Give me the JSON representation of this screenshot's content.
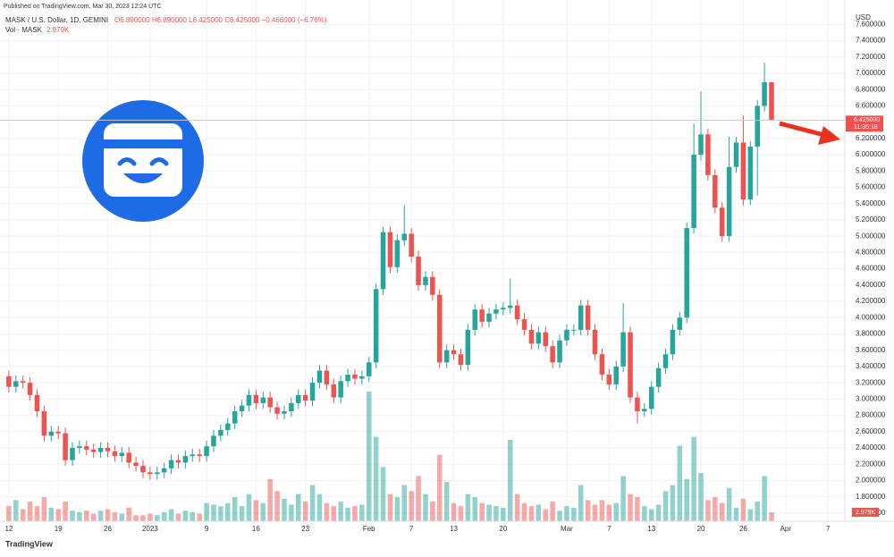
{
  "chart_data": {
    "type": "candlestick",
    "published": "Published on TradingView.com, Mar 30, 2023 12:24 UTC",
    "title": "MASK / U.S. Dollar, 1D, GEMINI",
    "ohlc_legend": "O6.890000 H6.890000 L6.425000 C6.425000 −0.466000 (−6.76%)",
    "volume_title": "Vol · MASK",
    "volume_label": "2.979K",
    "currency": "USD",
    "price_label": "6.425000",
    "countdown": "11:35:18",
    "brand": "TradingView",
    "up_color": "#26a69a",
    "down_color": "#ef5350",
    "grid": true,
    "x": [
      "2022-12-12",
      "2022-12-13",
      "2022-12-14",
      "2022-12-15",
      "2022-12-16",
      "2022-12-17",
      "2022-12-18",
      "2022-12-19",
      "2022-12-20",
      "2022-12-21",
      "2022-12-22",
      "2022-12-23",
      "2022-12-24",
      "2022-12-25",
      "2022-12-26",
      "2022-12-27",
      "2022-12-28",
      "2022-12-29",
      "2022-12-30",
      "2022-12-31",
      "2023-01-01",
      "2023-01-02",
      "2023-01-03",
      "2023-01-04",
      "2023-01-05",
      "2023-01-06",
      "2023-01-07",
      "2023-01-08",
      "2023-01-09",
      "2023-01-10",
      "2023-01-11",
      "2023-01-12",
      "2023-01-13",
      "2023-01-14",
      "2023-01-15",
      "2023-01-16",
      "2023-01-17",
      "2023-01-18",
      "2023-01-19",
      "2023-01-20",
      "2023-01-21",
      "2023-01-22",
      "2023-01-23",
      "2023-01-24",
      "2023-01-25",
      "2023-01-26",
      "2023-01-27",
      "2023-01-28",
      "2023-01-29",
      "2023-01-30",
      "2023-01-31",
      "2023-02-01",
      "2023-02-02",
      "2023-02-03",
      "2023-02-04",
      "2023-02-05",
      "2023-02-06",
      "2023-02-07",
      "2023-02-08",
      "2023-02-09",
      "2023-02-10",
      "2023-02-11",
      "2023-02-12",
      "2023-02-13",
      "2023-02-14",
      "2023-02-15",
      "2023-02-16",
      "2023-02-17",
      "2023-02-18",
      "2023-02-19",
      "2023-02-20",
      "2023-02-21",
      "2023-02-22",
      "2023-02-23",
      "2023-02-24",
      "2023-02-25",
      "2023-02-26",
      "2023-02-27",
      "2023-02-28",
      "2023-03-01",
      "2023-03-02",
      "2023-03-03",
      "2023-03-04",
      "2023-03-05",
      "2023-03-06",
      "2023-03-07",
      "2023-03-08",
      "2023-03-09",
      "2023-03-10",
      "2023-03-11",
      "2023-03-12",
      "2023-03-13",
      "2023-03-14",
      "2023-03-15",
      "2023-03-16",
      "2023-03-17",
      "2023-03-18",
      "2023-03-19",
      "2023-03-20",
      "2023-03-21",
      "2023-03-22",
      "2023-03-23",
      "2023-03-24",
      "2023-03-25",
      "2023-03-26",
      "2023-03-27",
      "2023-03-28",
      "2023-03-29",
      "2023-03-30"
    ],
    "open": [
      3.28,
      3.15,
      3.22,
      3.2,
      3.05,
      2.85,
      2.55,
      2.6,
      2.58,
      2.25,
      2.4,
      2.42,
      2.38,
      2.35,
      2.4,
      2.36,
      2.3,
      2.34,
      2.22,
      2.18,
      2.1,
      2.08,
      2.1,
      2.15,
      2.25,
      2.22,
      2.3,
      2.32,
      2.3,
      2.42,
      2.55,
      2.62,
      2.7,
      2.85,
      2.92,
      3.05,
      2.95,
      3.02,
      2.9,
      2.82,
      2.85,
      2.95,
      3.05,
      2.98,
      3.2,
      3.35,
      3.18,
      3.02,
      3.22,
      3.3,
      3.25,
      3.28,
      3.45,
      4.35,
      5.05,
      4.62,
      4.95,
      5.03,
      4.75,
      4.4,
      4.5,
      4.28,
      3.45,
      3.6,
      3.55,
      3.42,
      3.85,
      4.1,
      3.95,
      4.05,
      4.1,
      4.12,
      4.15,
      3.98,
      3.85,
      3.68,
      3.82,
      3.65,
      3.45,
      3.72,
      3.85,
      3.85,
      4.15,
      3.85,
      3.55,
      3.3,
      3.18,
      3.4,
      3.82,
      3.02,
      2.85,
      2.88,
      3.15,
      3.38,
      3.55,
      3.85,
      4.0,
      5.1,
      6.0,
      6.25,
      5.75,
      5.35,
      5.0,
      5.85,
      6.15,
      5.45,
      6.1,
      6.6,
      6.89
    ],
    "high": [
      3.35,
      3.29,
      3.29,
      3.27,
      3.12,
      2.92,
      2.67,
      2.67,
      2.65,
      2.47,
      2.49,
      2.49,
      2.45,
      2.47,
      2.47,
      2.43,
      2.41,
      2.41,
      2.29,
      2.25,
      2.17,
      2.17,
      2.22,
      2.32,
      2.32,
      2.37,
      2.39,
      2.39,
      2.49,
      2.62,
      2.69,
      2.77,
      2.92,
      2.99,
      3.12,
      3.12,
      3.09,
      3.09,
      2.97,
      2.92,
      3.02,
      3.12,
      3.12,
      3.27,
      3.42,
      3.42,
      3.25,
      3.29,
      3.37,
      3.37,
      3.35,
      3.52,
      4.42,
      5.12,
      5.12,
      5.02,
      5.38,
      5.1,
      4.82,
      4.57,
      4.57,
      4.35,
      3.67,
      3.67,
      3.62,
      3.92,
      4.17,
      4.17,
      4.12,
      4.17,
      4.19,
      4.48,
      4.22,
      4.05,
      3.92,
      3.89,
      3.89,
      3.72,
      3.79,
      3.92,
      3.92,
      4.22,
      4.22,
      3.92,
      3.62,
      3.37,
      3.47,
      4.18,
      3.89,
      3.09,
      2.95,
      3.22,
      3.45,
      3.62,
      3.92,
      4.07,
      5.17,
      6.38,
      6.78,
      6.32,
      5.82,
      5.42,
      6.22,
      6.22,
      6.48,
      6.17,
      6.67,
      7.13,
      6.89
    ],
    "low": [
      3.08,
      3.08,
      3.13,
      2.98,
      2.78,
      2.48,
      2.48,
      2.51,
      2.18,
      2.18,
      2.33,
      2.31,
      2.28,
      2.28,
      2.29,
      2.23,
      2.23,
      2.15,
      2.11,
      2.03,
      2.01,
      2.01,
      2.03,
      2.08,
      2.15,
      2.15,
      2.23,
      2.23,
      2.23,
      2.35,
      2.48,
      2.55,
      2.63,
      2.78,
      2.85,
      2.88,
      2.88,
      2.83,
      2.75,
      2.75,
      2.78,
      2.88,
      2.91,
      2.91,
      3.13,
      3.11,
      2.95,
      2.95,
      3.15,
      3.18,
      3.18,
      3.21,
      3.38,
      4.28,
      4.55,
      4.55,
      4.88,
      4.68,
      4.33,
      4.33,
      4.21,
      3.38,
      3.38,
      3.48,
      3.35,
      3.35,
      3.78,
      3.88,
      3.88,
      3.98,
      4.03,
      4.05,
      3.91,
      3.78,
      3.61,
      3.61,
      3.58,
      3.38,
      3.38,
      3.65,
      3.78,
      3.78,
      3.78,
      3.48,
      3.23,
      3.11,
      3.11,
      3.33,
      2.95,
      2.7,
      2.78,
      2.81,
      3.08,
      3.31,
      3.48,
      3.78,
      3.93,
      5.03,
      5.93,
      5.68,
      5.28,
      4.93,
      4.93,
      5.78,
      5.38,
      5.38,
      5.5,
      6.53,
      6.425
    ],
    "close": [
      3.15,
      3.22,
      3.2,
      3.05,
      2.85,
      2.55,
      2.6,
      2.58,
      2.25,
      2.4,
      2.42,
      2.38,
      2.35,
      2.4,
      2.36,
      2.3,
      2.34,
      2.22,
      2.18,
      2.1,
      2.08,
      2.1,
      2.15,
      2.25,
      2.22,
      2.3,
      2.32,
      2.3,
      2.42,
      2.55,
      2.62,
      2.7,
      2.85,
      2.92,
      3.05,
      2.95,
      3.02,
      2.9,
      2.82,
      2.85,
      2.95,
      3.05,
      2.98,
      3.2,
      3.35,
      3.18,
      3.02,
      3.22,
      3.3,
      3.25,
      3.28,
      3.45,
      4.35,
      5.05,
      4.62,
      4.95,
      5.03,
      4.75,
      4.4,
      4.5,
      4.28,
      3.45,
      3.6,
      3.55,
      3.42,
      3.85,
      4.1,
      3.95,
      4.05,
      4.1,
      4.12,
      4.15,
      3.98,
      3.85,
      3.68,
      3.82,
      3.65,
      3.45,
      3.72,
      3.85,
      3.85,
      4.15,
      3.85,
      3.55,
      3.3,
      3.18,
      3.4,
      3.82,
      3.02,
      2.85,
      2.88,
      3.15,
      3.38,
      3.55,
      3.85,
      4.0,
      5.1,
      6.0,
      6.25,
      5.75,
      5.35,
      5.0,
      5.85,
      6.15,
      5.45,
      6.1,
      6.6,
      6.89,
      6.425
    ],
    "volume": [
      5000,
      7000,
      4000,
      6500,
      5000,
      8000,
      4500,
      4000,
      6500,
      3500,
      3000,
      3500,
      2500,
      3500,
      4000,
      3000,
      2500,
      4500,
      2000,
      2000,
      2500,
      2000,
      3000,
      4000,
      2500,
      3500,
      3000,
      2500,
      6000,
      5500,
      5000,
      6000,
      8000,
      5000,
      9000,
      7000,
      6000,
      14000,
      10000,
      7500,
      5500,
      9000,
      6500,
      12000,
      9000,
      6000,
      5000,
      6500,
      4500,
      5000,
      5500,
      43000,
      28000,
      18000,
      9000,
      8000,
      12000,
      10000,
      15000,
      9000,
      6500,
      22000,
      13000,
      6000,
      5000,
      9000,
      8000,
      6000,
      5500,
      5000,
      4500,
      27000,
      9000,
      6000,
      5000,
      5500,
      4000,
      6500,
      3500,
      5000,
      4500,
      12000,
      7000,
      5500,
      7000,
      5500,
      6000,
      15000,
      9000,
      8000,
      5000,
      4000,
      5500,
      10000,
      12000,
      25000,
      14000,
      28000,
      16000,
      7000,
      8000,
      6000,
      11000,
      4500,
      7500,
      4000,
      6500,
      15000,
      2979
    ],
    "xlim": [
      "2022-12-11",
      "2023-04-09"
    ],
    "xticks": [
      {
        "value": "2022-12-12",
        "label": "12"
      },
      {
        "value": "2022-12-19",
        "label": "19"
      },
      {
        "value": "2022-12-26",
        "label": "26"
      },
      {
        "value": "2023-01-01",
        "label": "2023"
      },
      {
        "value": "2023-01-09",
        "label": "9"
      },
      {
        "value": "2023-01-16",
        "label": "16"
      },
      {
        "value": "2023-01-23",
        "label": "23"
      },
      {
        "value": "2023-02-01",
        "label": "Feb"
      },
      {
        "value": "2023-02-07",
        "label": "7"
      },
      {
        "value": "2023-02-13",
        "label": "13"
      },
      {
        "value": "2023-02-20",
        "label": "20"
      },
      {
        "value": "2023-03-01",
        "label": "Mar"
      },
      {
        "value": "2023-03-07",
        "label": "7"
      },
      {
        "value": "2023-03-13",
        "label": "13"
      },
      {
        "value": "2023-03-20",
        "label": "20"
      },
      {
        "value": "2023-03-26",
        "label": "26"
      },
      {
        "value": "2023-04-01",
        "label": "Apr"
      },
      {
        "value": "2023-04-07",
        "label": "7"
      }
    ],
    "ylim": [
      1.5,
      7.9
    ],
    "yticks": [
      {
        "value": 1.6,
        "label": "1.600000"
      },
      {
        "value": 1.8,
        "label": "1.800000"
      },
      {
        "value": 2.0,
        "label": "2.000000"
      },
      {
        "value": 2.2,
        "label": "2.200000"
      },
      {
        "value": 2.4,
        "label": "2.400000"
      },
      {
        "value": 2.6,
        "label": "2.600000"
      },
      {
        "value": 2.8,
        "label": "2.800000"
      },
      {
        "value": 3.0,
        "label": "3.000000"
      },
      {
        "value": 3.2,
        "label": "3.200000"
      },
      {
        "value": 3.4,
        "label": "3.400000"
      },
      {
        "value": 3.6,
        "label": "3.600000"
      },
      {
        "value": 3.8,
        "label": "3.800000"
      },
      {
        "value": 4.0,
        "label": "4.000000"
      },
      {
        "value": 4.2,
        "label": "4.200000"
      },
      {
        "value": 4.4,
        "label": "4.400000"
      },
      {
        "value": 4.6,
        "label": "4.600000"
      },
      {
        "value": 4.8,
        "label": "4.800000"
      },
      {
        "value": 5.0,
        "label": "5.000000"
      },
      {
        "value": 5.2,
        "label": "5.200000"
      },
      {
        "value": 5.4,
        "label": "5.400000"
      },
      {
        "value": 5.6,
        "label": "5.600000"
      },
      {
        "value": 5.8,
        "label": "5.800000"
      },
      {
        "value": 6.0,
        "label": "6.000000"
      },
      {
        "value": 6.2,
        "label": "6.200000"
      },
      {
        "value": 6.6,
        "label": "6.600000"
      },
      {
        "value": 6.8,
        "label": "6.800000"
      },
      {
        "value": 7.0,
        "label": "7.000000"
      },
      {
        "value": 7.2,
        "label": "7.200000"
      },
      {
        "value": 7.4,
        "label": "7.400000"
      },
      {
        "value": 7.6,
        "label": "7.600000"
      }
    ]
  }
}
